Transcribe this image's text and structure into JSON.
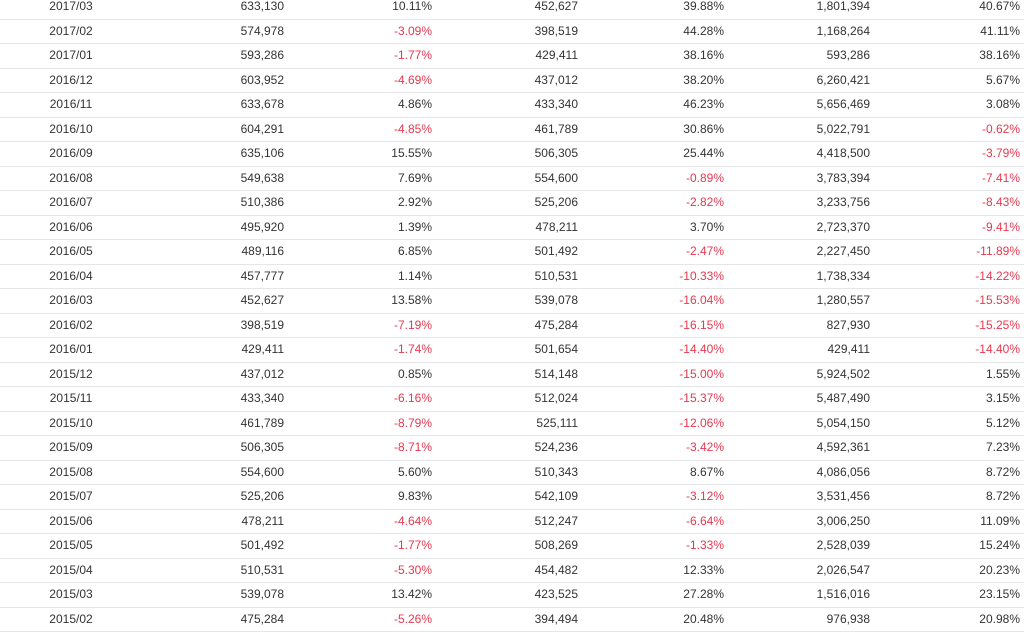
{
  "table": {
    "rows": [
      [
        "2017/03",
        "633,130",
        "10.11%",
        "452,627",
        "39.88%",
        "1,801,394",
        "40.67%"
      ],
      [
        "2017/02",
        "574,978",
        "-3.09%",
        "398,519",
        "44.28%",
        "1,168,264",
        "41.11%"
      ],
      [
        "2017/01",
        "593,286",
        "-1.77%",
        "429,411",
        "38.16%",
        "593,286",
        "38.16%"
      ],
      [
        "2016/12",
        "603,952",
        "-4.69%",
        "437,012",
        "38.20%",
        "6,260,421",
        "5.67%"
      ],
      [
        "2016/11",
        "633,678",
        "4.86%",
        "433,340",
        "46.23%",
        "5,656,469",
        "3.08%"
      ],
      [
        "2016/10",
        "604,291",
        "-4.85%",
        "461,789",
        "30.86%",
        "5,022,791",
        "-0.62%"
      ],
      [
        "2016/09",
        "635,106",
        "15.55%",
        "506,305",
        "25.44%",
        "4,418,500",
        "-3.79%"
      ],
      [
        "2016/08",
        "549,638",
        "7.69%",
        "554,600",
        "-0.89%",
        "3,783,394",
        "-7.41%"
      ],
      [
        "2016/07",
        "510,386",
        "2.92%",
        "525,206",
        "-2.82%",
        "3,233,756",
        "-8.43%"
      ],
      [
        "2016/06",
        "495,920",
        "1.39%",
        "478,211",
        "3.70%",
        "2,723,370",
        "-9.41%"
      ],
      [
        "2016/05",
        "489,116",
        "6.85%",
        "501,492",
        "-2.47%",
        "2,227,450",
        "-11.89%"
      ],
      [
        "2016/04",
        "457,777",
        "1.14%",
        "510,531",
        "-10.33%",
        "1,738,334",
        "-14.22%"
      ],
      [
        "2016/03",
        "452,627",
        "13.58%",
        "539,078",
        "-16.04%",
        "1,280,557",
        "-15.53%"
      ],
      [
        "2016/02",
        "398,519",
        "-7.19%",
        "475,284",
        "-16.15%",
        "827,930",
        "-15.25%"
      ],
      [
        "2016/01",
        "429,411",
        "-1.74%",
        "501,654",
        "-14.40%",
        "429,411",
        "-14.40%"
      ],
      [
        "2015/12",
        "437,012",
        "0.85%",
        "514,148",
        "-15.00%",
        "5,924,502",
        "1.55%"
      ],
      [
        "2015/11",
        "433,340",
        "-6.16%",
        "512,024",
        "-15.37%",
        "5,487,490",
        "3.15%"
      ],
      [
        "2015/10",
        "461,789",
        "-8.79%",
        "525,111",
        "-12.06%",
        "5,054,150",
        "5.12%"
      ],
      [
        "2015/09",
        "506,305",
        "-8.71%",
        "524,236",
        "-3.42%",
        "4,592,361",
        "7.23%"
      ],
      [
        "2015/08",
        "554,600",
        "5.60%",
        "510,343",
        "8.67%",
        "4,086,056",
        "8.72%"
      ],
      [
        "2015/07",
        "525,206",
        "9.83%",
        "542,109",
        "-3.12%",
        "3,531,456",
        "8.72%"
      ],
      [
        "2015/06",
        "478,211",
        "-4.64%",
        "512,247",
        "-6.64%",
        "3,006,250",
        "11.09%"
      ],
      [
        "2015/05",
        "501,492",
        "-1.77%",
        "508,269",
        "-1.33%",
        "2,528,039",
        "15.24%"
      ],
      [
        "2015/04",
        "510,531",
        "-5.30%",
        "454,482",
        "12.33%",
        "2,026,547",
        "20.23%"
      ],
      [
        "2015/03",
        "539,078",
        "13.42%",
        "423,525",
        "27.28%",
        "1,516,016",
        "23.15%"
      ],
      [
        "2015/02",
        "475,284",
        "-5.26%",
        "394,494",
        "20.48%",
        "976,938",
        "20.98%"
      ]
    ]
  },
  "colors": {
    "negative": "#e8384f",
    "text": "#333333",
    "row_border": "#e6e6e6"
  }
}
